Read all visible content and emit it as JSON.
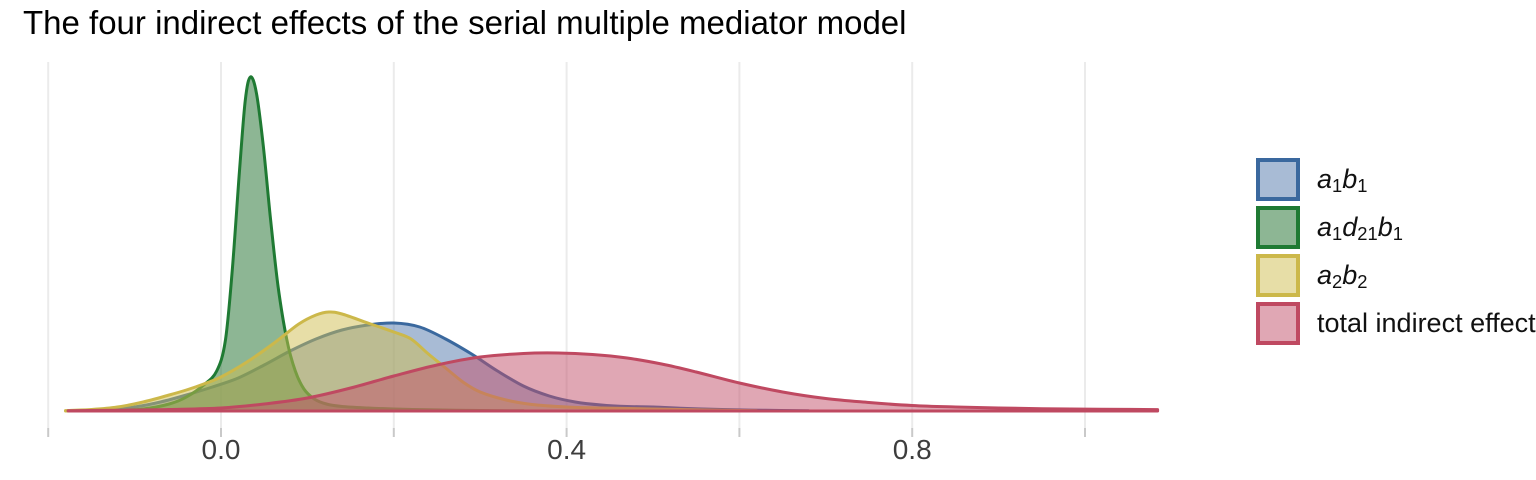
{
  "chart_data": {
    "type": "area",
    "title": "The four indirect effects of the serial multiple mediator model",
    "x_axis": {
      "xlim": [
        -0.18,
        1.085
      ],
      "gridlines": [
        -0.2,
        0.0,
        0.2,
        0.4,
        0.6,
        0.8,
        1.0
      ],
      "ticks": [
        {
          "v": 0.0,
          "label": "0.0"
        },
        {
          "v": 0.4,
          "label": "0.4"
        },
        {
          "v": 0.8,
          "label": "0.8"
        }
      ],
      "gridline_color": "#ebebeb",
      "tick_color": "#c9c9c9",
      "tick_label_color": "#3d3d3d"
    },
    "y_axis": {
      "label": "",
      "ticks": [],
      "note": "density, unlabeled"
    },
    "legend_position": "right",
    "series": [
      {
        "key": "a1b1",
        "label_text": "a1b1",
        "label_parts": [
          [
            "a",
            "i"
          ],
          [
            "1",
            "s"
          ],
          [
            "b",
            "i"
          ],
          [
            "1",
            "s"
          ]
        ],
        "line_color": "#3a689e",
        "fill_color": "rgba(74,112,168,0.48)",
        "peak_x": 0.2,
        "points": [
          [
            -0.16,
            0.3
          ],
          [
            -0.13,
            1.5
          ],
          [
            -0.1,
            4
          ],
          [
            -0.07,
            9
          ],
          [
            -0.04,
            16
          ],
          [
            -0.01,
            24
          ],
          [
            0.02,
            33
          ],
          [
            0.05,
            46
          ],
          [
            0.08,
            60
          ],
          [
            0.11,
            72
          ],
          [
            0.14,
            81
          ],
          [
            0.17,
            86
          ],
          [
            0.2,
            88
          ],
          [
            0.23,
            84
          ],
          [
            0.26,
            72
          ],
          [
            0.29,
            57
          ],
          [
            0.32,
            40
          ],
          [
            0.35,
            25
          ],
          [
            0.38,
            15
          ],
          [
            0.41,
            9
          ],
          [
            0.44,
            6
          ],
          [
            0.47,
            4.5
          ],
          [
            0.5,
            4
          ],
          [
            0.54,
            2.5
          ],
          [
            0.58,
            1.5
          ],
          [
            0.63,
            0.7
          ],
          [
            0.68,
            0.2
          ]
        ]
      },
      {
        "key": "a1d21b1",
        "label_text": "a1d21b1",
        "label_parts": [
          [
            "a",
            "i"
          ],
          [
            "1",
            "s"
          ],
          [
            "d",
            "i"
          ],
          [
            "21",
            "s"
          ],
          [
            "b",
            "i"
          ],
          [
            "1",
            "s"
          ]
        ],
        "line_color": "#1f7a33",
        "fill_color": "rgba(47,122,60,0.55)",
        "peak_x": 0.034,
        "points": [
          [
            -0.12,
            0.5
          ],
          [
            -0.09,
            2
          ],
          [
            -0.06,
            7
          ],
          [
            -0.04,
            14
          ],
          [
            -0.02,
            26
          ],
          [
            -0.005,
            40
          ],
          [
            0.005,
            70
          ],
          [
            0.013,
            140
          ],
          [
            0.021,
            235
          ],
          [
            0.028,
            310
          ],
          [
            0.034,
            334
          ],
          [
            0.041,
            318
          ],
          [
            0.049,
            265
          ],
          [
            0.057,
            195
          ],
          [
            0.066,
            125
          ],
          [
            0.076,
            72
          ],
          [
            0.086,
            40
          ],
          [
            0.096,
            22
          ],
          [
            0.108,
            12
          ],
          [
            0.122,
            7
          ],
          [
            0.14,
            4.5
          ],
          [
            0.17,
            3
          ],
          [
            0.2,
            2
          ],
          [
            0.24,
            1.2
          ],
          [
            0.3,
            0.5
          ],
          [
            0.35,
            0.2
          ]
        ]
      },
      {
        "key": "a2b2",
        "label_text": "a2b2",
        "label_parts": [
          [
            "a",
            "i"
          ],
          [
            "2",
            "s"
          ],
          [
            "b",
            "i"
          ],
          [
            "2",
            "s"
          ]
        ],
        "line_color": "#ccb84a",
        "fill_color": "rgba(207,190,80,0.5)",
        "peak_x": 0.125,
        "points": [
          [
            -0.18,
            0.4
          ],
          [
            -0.15,
            1.5
          ],
          [
            -0.12,
            4
          ],
          [
            -0.09,
            9
          ],
          [
            -0.06,
            16
          ],
          [
            -0.04,
            21
          ],
          [
            -0.02,
            27
          ],
          [
            0.0,
            34
          ],
          [
            0.03,
            49
          ],
          [
            0.06,
            67
          ],
          [
            0.09,
            87
          ],
          [
            0.11,
            96
          ],
          [
            0.125,
            99
          ],
          [
            0.14,
            97
          ],
          [
            0.17,
            88
          ],
          [
            0.2,
            79
          ],
          [
            0.22,
            72
          ],
          [
            0.24,
            57
          ],
          [
            0.26,
            43
          ],
          [
            0.28,
            29
          ],
          [
            0.3,
            19
          ],
          [
            0.33,
            11
          ],
          [
            0.36,
            6.5
          ],
          [
            0.4,
            4
          ],
          [
            0.44,
            3
          ],
          [
            0.5,
            2
          ],
          [
            0.56,
            1
          ],
          [
            0.62,
            0.3
          ]
        ]
      },
      {
        "key": "total",
        "label_text": "total indirect effect",
        "label_parts": [
          [
            "total indirect effect",
            "r"
          ]
        ],
        "line_color": "#bf4961",
        "fill_color": "rgba(194,80,105,0.5)",
        "peak_x": 0.39,
        "points": [
          [
            -0.177,
            0.3
          ],
          [
            -0.12,
            0.8
          ],
          [
            -0.06,
            1.5
          ],
          [
            0.0,
            3
          ],
          [
            0.05,
            7
          ],
          [
            0.1,
            13
          ],
          [
            0.15,
            23
          ],
          [
            0.2,
            35
          ],
          [
            0.25,
            46
          ],
          [
            0.3,
            54
          ],
          [
            0.35,
            57.5
          ],
          [
            0.39,
            58
          ],
          [
            0.43,
            56.5
          ],
          [
            0.47,
            53
          ],
          [
            0.51,
            47
          ],
          [
            0.55,
            39
          ],
          [
            0.6,
            28
          ],
          [
            0.65,
            19
          ],
          [
            0.7,
            12.5
          ],
          [
            0.75,
            8.5
          ],
          [
            0.8,
            5.5
          ],
          [
            0.85,
            4
          ],
          [
            0.9,
            3
          ],
          [
            0.95,
            2.3
          ],
          [
            1.0,
            1.9
          ],
          [
            1.05,
            1.6
          ],
          [
            1.084,
            1.4
          ]
        ]
      }
    ]
  }
}
